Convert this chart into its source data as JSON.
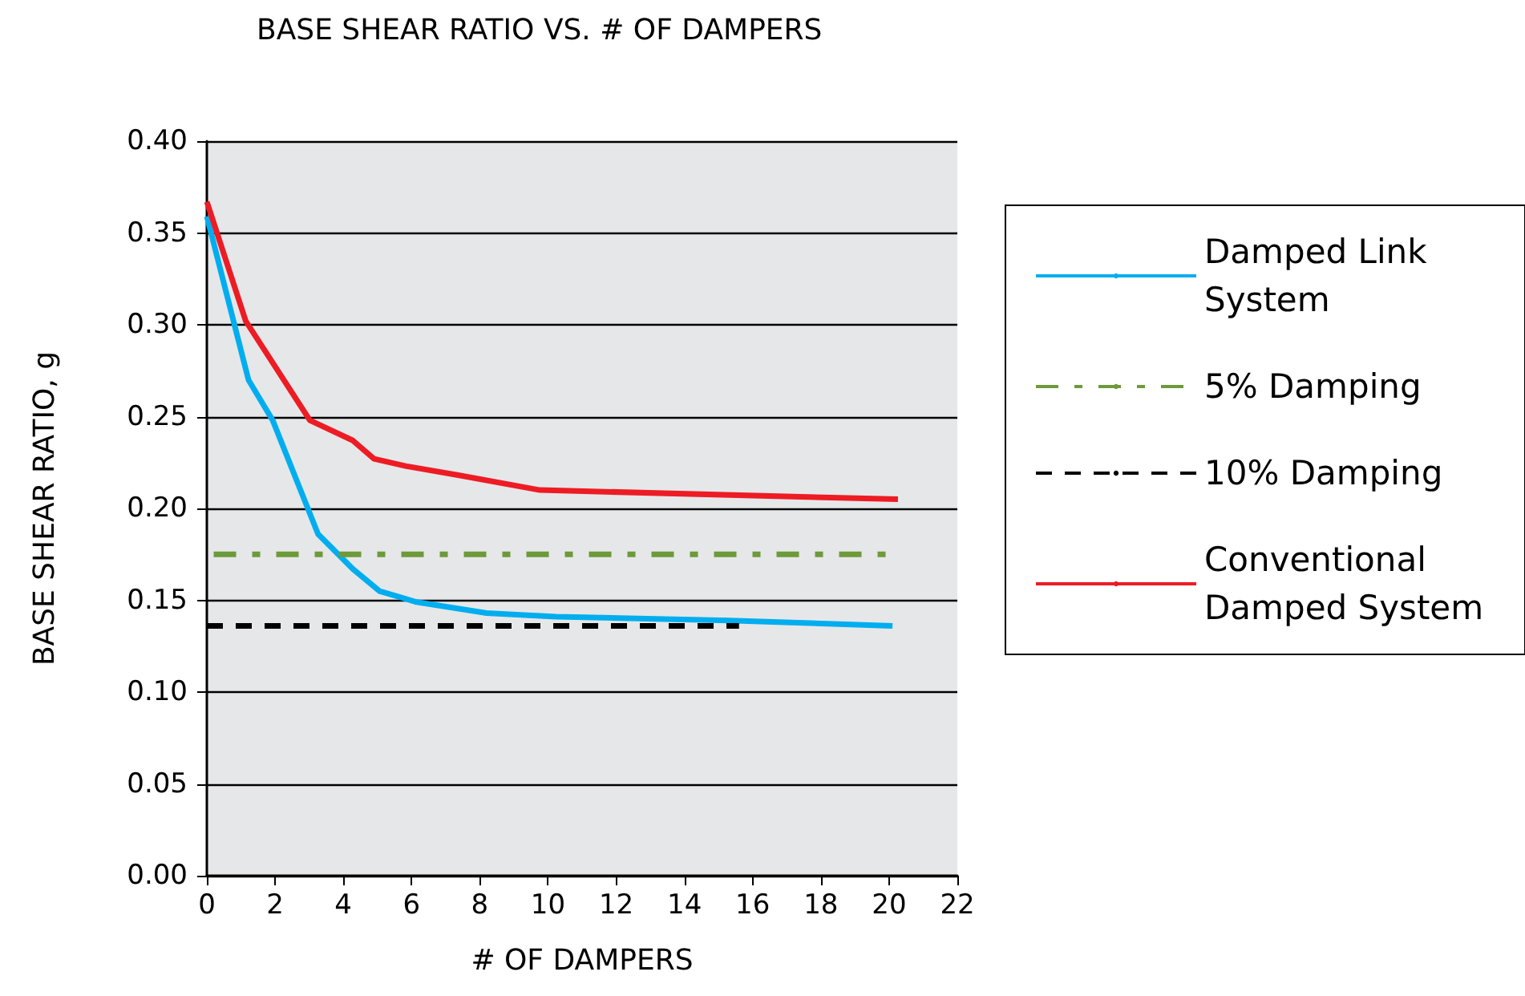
{
  "chart_data": {
    "type": "line",
    "title": "BASE SHEAR RATIO VS. # OF DAMPERS",
    "xlabel": "# OF DAMPERS",
    "ylabel": "BASE SHEAR RATIO, g",
    "series": [
      {
        "name": "Damped Link System",
        "color": "#00aeef",
        "x": [
          0,
          1.22,
          1.93,
          3.26,
          4.28,
          5.06,
          6.15,
          8.2,
          10.23,
          15.3,
          20.1
        ],
        "values": [
          0.359,
          0.27,
          0.248,
          0.186,
          0.167,
          0.155,
          0.149,
          0.143,
          0.141,
          0.139,
          0.136
        ]
      },
      {
        "name": "5% Damping",
        "color": "#6d9a3a",
        "line_style": "dashdot",
        "x": [
          0.2,
          19.9
        ],
        "values": [
          0.175,
          0.175
        ]
      },
      {
        "name": "10% Damping",
        "color": "#000000",
        "line_style": "dashed",
        "x": [
          0,
          15.6
        ],
        "values": [
          0.136,
          0.136
        ]
      },
      {
        "name": "Conventional Damped System",
        "color": "#ed1c24",
        "x": [
          0,
          1.14,
          3.02,
          4.28,
          4.9,
          5.85,
          7.4,
          9.76,
          20.26
        ],
        "values": [
          0.367,
          0.302,
          0.248,
          0.237,
          0.227,
          0.223,
          0.218,
          0.21,
          0.205
        ]
      }
    ],
    "xlim": [
      0,
      22
    ],
    "xticks": [
      0,
      2,
      4,
      6,
      8,
      10,
      12,
      14,
      16,
      18,
      20,
      22
    ],
    "ylim": [
      0,
      0.4
    ],
    "yticks": [
      {
        "value": 0,
        "label": "0.00"
      },
      {
        "value": 0.05,
        "label": "0.05"
      },
      {
        "value": 0.1,
        "label": "0.10"
      },
      {
        "value": 0.15,
        "label": "0.15"
      },
      {
        "value": 0.2,
        "label": "0.20"
      },
      {
        "value": 0.25,
        "label": "0.25"
      },
      {
        "value": 0.3,
        "label": "0.30"
      },
      {
        "value": 0.35,
        "label": "0.35"
      },
      {
        "value": 0.4,
        "label": "0.40"
      }
    ],
    "grid": "y",
    "legend": "right",
    "marker": "none"
  }
}
